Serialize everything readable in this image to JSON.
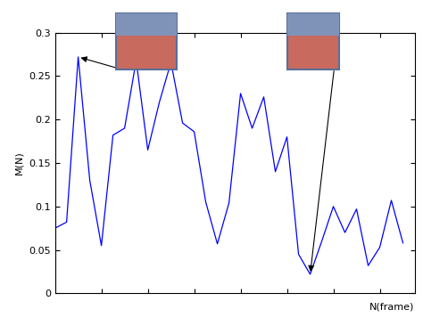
{
  "chart_data": {
    "type": "line",
    "x_label": "N(frame)",
    "y_label": "M(N)",
    "x": [
      1,
      2,
      3,
      4,
      5,
      6,
      7,
      8,
      9,
      10,
      11,
      12,
      13,
      14,
      15,
      16,
      17,
      18,
      19,
      20,
      21,
      22,
      23,
      24,
      25,
      26,
      27,
      28,
      29,
      30,
      31
    ],
    "values": [
      0.075,
      0.082,
      0.272,
      0.13,
      0.055,
      0.182,
      0.19,
      0.268,
      0.165,
      0.22,
      0.266,
      0.196,
      0.186,
      0.105,
      0.057,
      0.104,
      0.23,
      0.19,
      0.226,
      0.14,
      0.18,
      0.045,
      0.022,
      0.06,
      0.1,
      0.07,
      0.097,
      0.032,
      0.053,
      0.107,
      0.058
    ],
    "color": "#0000ff",
    "xlim": [
      1,
      32
    ],
    "xticks": [
      5,
      9,
      13,
      17,
      21,
      25,
      29
    ],
    "ylim": [
      0,
      0.3
    ],
    "yticks": [
      0,
      0.05,
      0.1,
      0.15,
      0.2,
      0.25,
      0.3
    ],
    "tick_labels": "y"
  }
}
